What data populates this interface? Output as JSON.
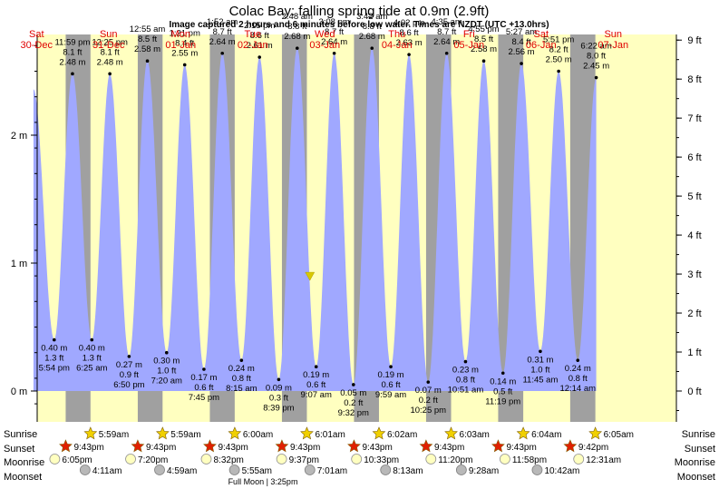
{
  "title": "Colac Bay: falling  spring tide at 0.9m (2.9ft)",
  "subtitle": "Image captured 2 hours and 6 minutes before low water. Times are NZDT (UTC +13.0hrs)",
  "days": [
    {
      "dow": "Sat",
      "date": "30-Dec"
    },
    {
      "dow": "Sun",
      "date": "31-Dec"
    },
    {
      "dow": "Mon",
      "date": "01-Jan"
    },
    {
      "dow": "Tue",
      "date": "02-Jan"
    },
    {
      "dow": "Wed",
      "date": "03-Jan"
    },
    {
      "dow": "Thu",
      "date": "04-Jan"
    },
    {
      "dow": "Fri",
      "date": "05-Jan"
    },
    {
      "dow": "Sat",
      "date": "06-Jan"
    },
    {
      "dow": "Sun",
      "date": "07-Jan"
    }
  ],
  "colors": {
    "day_bg": "#ffffc0",
    "night_bg": "#a0a0a0",
    "water": "#a0a8ff",
    "day_label": "#e00000",
    "marker": "#d8c800"
  },
  "chart_data": {
    "type": "area",
    "x_unit": "hours from Sat 30-Dec 00:00 NZDT",
    "left_axis": {
      "label": "m",
      "ticks": [
        "0 m",
        "1 m",
        "2 m"
      ],
      "values": [
        0,
        1,
        2
      ]
    },
    "right_axis": {
      "label": "ft",
      "ticks": [
        "0 ft",
        "1 ft",
        "2 ft",
        "3 ft",
        "4 ft",
        "5 ft",
        "6 ft",
        "7 ft",
        "8 ft",
        "9 ft"
      ],
      "values": [
        0,
        1,
        2,
        3,
        4,
        5,
        6,
        7,
        8,
        9
      ]
    },
    "ylim_m": [
      -0.08,
      3.1
    ],
    "current": {
      "height_m": 0.9,
      "height_ft": 2.9,
      "label": "falling spring tide"
    },
    "extrema": [
      {
        "type": "high",
        "time": "",
        "h": 2.36,
        "anchor": 11.0,
        "hidden": true
      },
      {
        "type": "low",
        "m": "0.40 m",
        "ft": "1.3 ft",
        "time": "5:54 pm",
        "h": 0.4,
        "day": 0,
        "hour": 17.9
      },
      {
        "type": "high",
        "m": "2.48 m",
        "ft": "8.1 ft",
        "time": "11:59 pm",
        "h": 2.48,
        "day": 0,
        "hour": 23.98
      },
      {
        "type": "low",
        "m": "0.40 m",
        "ft": "1.3 ft",
        "time": "6:25 am",
        "h": 0.4,
        "day": 1,
        "hour": 6.42
      },
      {
        "type": "high",
        "m": "2.48 m",
        "ft": "8.1 ft",
        "time": "12:25 pm",
        "h": 2.48,
        "day": 1,
        "hour": 12.42
      },
      {
        "type": "low",
        "m": "0.27 m",
        "ft": "0.9 ft",
        "time": "6:50 pm",
        "h": 0.27,
        "day": 1,
        "hour": 18.83
      },
      {
        "type": "high",
        "m": "2.58 m",
        "ft": "8.5 ft",
        "time": "12:55 am",
        "h": 2.58,
        "day": 2,
        "hour": 0.92
      },
      {
        "type": "low",
        "m": "0.30 m",
        "ft": "1.0 ft",
        "time": "7:20 am",
        "h": 0.3,
        "day": 2,
        "hour": 7.33
      },
      {
        "type": "high",
        "m": "2.55 m",
        "ft": "8.4 ft",
        "time": "1:21 pm",
        "h": 2.55,
        "day": 2,
        "hour": 13.35
      },
      {
        "type": "low",
        "m": "0.17 m",
        "ft": "0.6 ft",
        "time": "7:45 pm",
        "h": 0.17,
        "day": 2,
        "hour": 19.75
      },
      {
        "type": "high",
        "m": "2.64 m",
        "ft": "8.7 ft",
        "time": "1:52 am",
        "h": 2.64,
        "day": 3,
        "hour": 1.87
      },
      {
        "type": "low",
        "m": "0.24 m",
        "ft": "0.8 ft",
        "time": "8:15 am",
        "h": 0.24,
        "day": 3,
        "hour": 8.25
      },
      {
        "type": "high",
        "m": "2.61 m",
        "ft": "8.6 ft",
        "time": "2:15 pm",
        "h": 2.61,
        "day": 3,
        "hour": 14.25
      },
      {
        "type": "low",
        "m": "0.09 m",
        "ft": "0.3 ft",
        "time": "8:39 pm",
        "h": 0.09,
        "day": 3,
        "hour": 20.65
      },
      {
        "type": "high",
        "m": "2.68 m",
        "ft": "8.8 ft",
        "time": "2:48 am",
        "h": 2.68,
        "day": 4,
        "hour": 2.8
      },
      {
        "type": "low",
        "m": "0.19 m",
        "ft": "0.6 ft",
        "time": "9:07 am",
        "h": 0.19,
        "day": 4,
        "hour": 9.12
      },
      {
        "type": "high",
        "m": "2.64 m",
        "ft": "8.7 ft",
        "time": "3:08 pm",
        "h": 2.64,
        "day": 4,
        "hour": 15.13
      },
      {
        "type": "low",
        "m": "0.05 m",
        "ft": "0.2 ft",
        "time": "9:32 pm",
        "h": 0.05,
        "day": 4,
        "hour": 21.53
      },
      {
        "type": "high",
        "m": "2.68 m",
        "ft": "8.8 ft",
        "time": "3:42 am",
        "h": 2.68,
        "day": 5,
        "hour": 3.7
      },
      {
        "type": "low",
        "m": "0.19 m",
        "ft": "0.6 ft",
        "time": "9:59 am",
        "h": 0.19,
        "day": 5,
        "hour": 9.98
      },
      {
        "type": "high",
        "m": "2.63 m",
        "ft": "8.6 ft",
        "time": "4:02 pm",
        "h": 2.63,
        "day": 5,
        "hour": 16.03
      },
      {
        "type": "low",
        "m": "0.07 m",
        "ft": "0.2 ft",
        "time": "10:25 pm",
        "h": 0.07,
        "day": 5,
        "hour": 22.42
      },
      {
        "type": "high",
        "m": "2.64 m",
        "ft": "8.7 ft",
        "time": "4:35 am",
        "h": 2.64,
        "day": 6,
        "hour": 4.58
      },
      {
        "type": "low",
        "m": "0.23 m",
        "ft": "0.8 ft",
        "time": "10:51 am",
        "h": 0.23,
        "day": 6,
        "hour": 10.85
      },
      {
        "type": "high",
        "m": "2.58 m",
        "ft": "8.5 ft",
        "time": "4:55 pm",
        "h": 2.58,
        "day": 6,
        "hour": 16.92
      },
      {
        "type": "low",
        "m": "0.14 m",
        "ft": "0.5 ft",
        "time": "11:19 pm",
        "h": 0.14,
        "day": 6,
        "hour": 23.32
      },
      {
        "type": "high",
        "m": "2.56 m",
        "ft": "8.4 ft",
        "time": "5:27 am",
        "h": 2.56,
        "day": 7,
        "hour": 5.45
      },
      {
        "type": "low",
        "m": "0.31 m",
        "ft": "1.0 ft",
        "time": "11:45 am",
        "h": 0.31,
        "day": 7,
        "hour": 11.75
      },
      {
        "type": "high",
        "m": "2.50 m",
        "ft": "8.2 ft",
        "time": "5:51 pm",
        "h": 2.5,
        "day": 7,
        "hour": 17.85
      },
      {
        "type": "low",
        "m": "0.24 m",
        "ft": "0.8 ft",
        "time": "12:14 am",
        "h": 0.24,
        "day": 8,
        "hour": 0.23
      },
      {
        "type": "high",
        "m": "2.45 m",
        "ft": "8.0 ft",
        "time": "6:22 am",
        "h": 2.45,
        "day": 8,
        "hour": 6.37
      }
    ]
  },
  "astro": {
    "row_labels": {
      "sunrise": "Sunrise",
      "sunset": "Sunset",
      "moonrise": "Moonrise",
      "moonset": "Moonset"
    },
    "sunrise": [
      {
        "day": 1,
        "time": "5:59am",
        "hour": 5.98
      },
      {
        "day": 2,
        "time": "5:59am",
        "hour": 5.98
      },
      {
        "day": 3,
        "time": "6:00am",
        "hour": 6.0
      },
      {
        "day": 4,
        "time": "6:01am",
        "hour": 6.02
      },
      {
        "day": 5,
        "time": "6:02am",
        "hour": 6.03
      },
      {
        "day": 6,
        "time": "6:03am",
        "hour": 6.05
      },
      {
        "day": 7,
        "time": "6:04am",
        "hour": 6.07
      },
      {
        "day": 8,
        "time": "6:05am",
        "hour": 6.08
      }
    ],
    "sunset": [
      {
        "day": 0,
        "time": "9:43pm",
        "hour": 21.72
      },
      {
        "day": 1,
        "time": "9:43pm",
        "hour": 21.72
      },
      {
        "day": 2,
        "time": "9:43pm",
        "hour": 21.72
      },
      {
        "day": 3,
        "time": "9:43pm",
        "hour": 21.72
      },
      {
        "day": 4,
        "time": "9:43pm",
        "hour": 21.72
      },
      {
        "day": 5,
        "time": "9:43pm",
        "hour": 21.72
      },
      {
        "day": 6,
        "time": "9:43pm",
        "hour": 21.72
      },
      {
        "day": 7,
        "time": "9:42pm",
        "hour": 21.7
      }
    ],
    "moonrise": [
      {
        "day": 0,
        "time": "6:05pm",
        "hour": 18.08
      },
      {
        "day": 1,
        "time": "7:20pm",
        "hour": 19.33
      },
      {
        "day": 2,
        "time": "8:32pm",
        "hour": 20.53
      },
      {
        "day": 3,
        "time": "9:37pm",
        "hour": 21.62
      },
      {
        "day": 4,
        "time": "10:33pm",
        "hour": 22.55
      },
      {
        "day": 5,
        "time": "11:20pm",
        "hour": 23.33
      },
      {
        "day": 6,
        "time": "11:58pm",
        "hour": 23.97
      },
      {
        "day": 8,
        "time": "12:31am",
        "hour": 0.52
      }
    ],
    "moonset": [
      {
        "day": 1,
        "time": "4:11am",
        "hour": 4.18
      },
      {
        "day": 2,
        "time": "4:59am",
        "hour": 4.98
      },
      {
        "day": 3,
        "time": "5:55am",
        "hour": 5.92
      },
      {
        "day": 4,
        "time": "7:01am",
        "hour": 7.02
      },
      {
        "day": 5,
        "time": "8:13am",
        "hour": 8.22
      },
      {
        "day": 6,
        "time": "9:28am",
        "hour": 9.47
      },
      {
        "day": 7,
        "time": "10:42am",
        "hour": 10.7
      }
    ],
    "full_moon": "Full Moon | 3:25pm"
  }
}
